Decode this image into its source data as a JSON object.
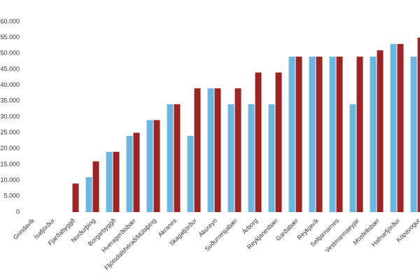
{
  "chart_data": {
    "type": "bar",
    "categories": [
      "Grindavík",
      "Ísafjörður",
      "Fjarðabyggð",
      "Norðurþing",
      "Borgarbyggð",
      "Hveragerðisbær",
      "Fljótsdalshérað/Múlaþing",
      "Akranes",
      "Skagafjörður",
      "Akureyri",
      "Suðurnesjabær",
      "Árborg",
      "Reykjanesbær",
      "Garðabær",
      "Reykjavík",
      "Seltjarnarnes",
      "Vestmannaeyjar",
      "Mosfellsbær",
      "Hafnarfjörður",
      "Kópavogur"
    ],
    "series": [
      {
        "color": "#6cb6e2",
        "values": [
          0,
          0,
          0,
          11000,
          19000,
          24000,
          29000,
          34000,
          24000,
          39000,
          34000,
          34000,
          34000,
          49000,
          49000,
          49000,
          34000,
          49000,
          53000,
          49000
        ]
      },
      {
        "color": "#9b2524",
        "values": [
          0,
          0,
          9000,
          16000,
          19000,
          25000,
          29000,
          34000,
          39000,
          39000,
          39000,
          44000,
          44000,
          49000,
          49000,
          49000,
          49000,
          51000,
          53000,
          55000
        ]
      }
    ],
    "ylim": [
      0,
      60000
    ],
    "yticks": [
      0,
      {
        "value": 5000,
        "label": "5.000"
      },
      {
        "value": 10000,
        "label": "10.000"
      },
      {
        "value": 15000,
        "label": "15.000"
      },
      {
        "value": 20000,
        "label": "20.000"
      },
      {
        "value": 25000,
        "label": "25.000"
      },
      {
        "value": 30000,
        "label": "30.000"
      },
      {
        "value": 35000,
        "label": "35.000"
      },
      {
        "value": 40000,
        "label": "40.000"
      },
      {
        "value": 45000,
        "label": "45.000"
      },
      {
        "value": 50000,
        "label": "50.000"
      },
      {
        "value": 55000,
        "label": "55.000"
      },
      {
        "value": 60000,
        "label": "60.000"
      }
    ],
    "grid": false
  }
}
